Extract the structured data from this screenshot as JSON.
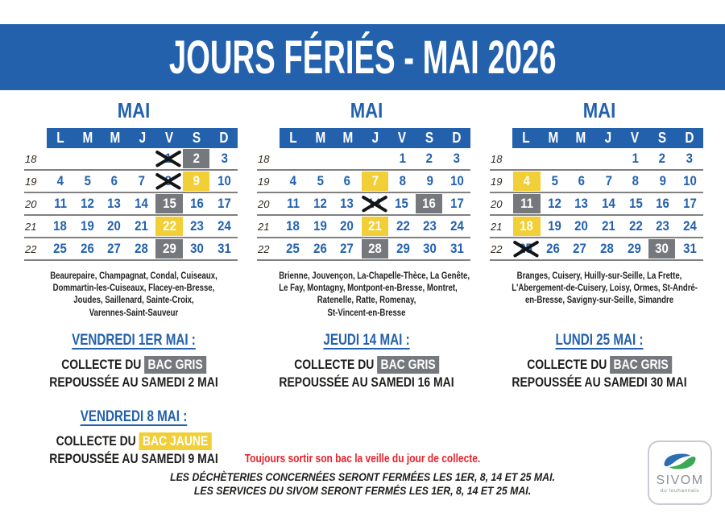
{
  "title": "JOURS FÉRIÉS - MAI 2026",
  "colors": {
    "blue": "#2361ad",
    "yellow": "#f2cf36",
    "gray": "#75797d",
    "red": "#e5242b",
    "ink": "#1d1d1b",
    "line": "#808080"
  },
  "calendars": [
    {
      "month": "MAI",
      "day_headers": [
        "L",
        "M",
        "M",
        "J",
        "V",
        "S",
        "D"
      ],
      "weeks": [
        {
          "week": "18",
          "cells": [
            {
              "d": "",
              "s": ""
            },
            {
              "d": "",
              "s": ""
            },
            {
              "d": "",
              "s": ""
            },
            {
              "d": "",
              "s": ""
            },
            {
              "d": "1",
              "s": "crossed"
            },
            {
              "d": "2",
              "s": "gray"
            },
            {
              "d": "3",
              "s": ""
            }
          ]
        },
        {
          "week": "19",
          "cells": [
            {
              "d": "4",
              "s": ""
            },
            {
              "d": "5",
              "s": ""
            },
            {
              "d": "6",
              "s": ""
            },
            {
              "d": "7",
              "s": ""
            },
            {
              "d": "8",
              "s": "crossed"
            },
            {
              "d": "9",
              "s": "yellow"
            },
            {
              "d": "10",
              "s": ""
            }
          ]
        },
        {
          "week": "20",
          "cells": [
            {
              "d": "11",
              "s": ""
            },
            {
              "d": "12",
              "s": ""
            },
            {
              "d": "13",
              "s": ""
            },
            {
              "d": "14",
              "s": ""
            },
            {
              "d": "15",
              "s": "gray"
            },
            {
              "d": "16",
              "s": ""
            },
            {
              "d": "17",
              "s": ""
            }
          ]
        },
        {
          "week": "21",
          "cells": [
            {
              "d": "18",
              "s": ""
            },
            {
              "d": "19",
              "s": ""
            },
            {
              "d": "20",
              "s": ""
            },
            {
              "d": "21",
              "s": ""
            },
            {
              "d": "22",
              "s": "yellow"
            },
            {
              "d": "23",
              "s": ""
            },
            {
              "d": "24",
              "s": ""
            }
          ]
        },
        {
          "week": "22",
          "cells": [
            {
              "d": "25",
              "s": ""
            },
            {
              "d": "26",
              "s": ""
            },
            {
              "d": "27",
              "s": ""
            },
            {
              "d": "28",
              "s": ""
            },
            {
              "d": "29",
              "s": "gray"
            },
            {
              "d": "30",
              "s": ""
            },
            {
              "d": "31",
              "s": ""
            }
          ]
        }
      ],
      "communes": "Beaurepaire, Champagnat, Condal, Cuiseaux,\nDommartin-les-Cuiseaux, Flacey-en-Bresse,\nJoudes, Saillenard, Sainte-Croix,\nVarennes-Saint-Sauveur",
      "notices": [
        {
          "heading": "VENDREDI 1ER MAI :",
          "prefix": "COLLECTE DU",
          "bin": "BAC GRIS",
          "bin_style": "gray",
          "line2": "REPOUSSÉE AU SAMEDI 2 MAI"
        },
        {
          "heading": "VENDREDI 8 MAI :",
          "prefix": "COLLECTE DU",
          "bin": "BAC JAUNE",
          "bin_style": "yellow",
          "line2": "REPOUSSÉE AU SAMEDI 9 MAI"
        }
      ]
    },
    {
      "month": "MAI",
      "day_headers": [
        "L",
        "M",
        "M",
        "J",
        "V",
        "S",
        "D"
      ],
      "weeks": [
        {
          "week": "18",
          "cells": [
            {
              "d": "",
              "s": ""
            },
            {
              "d": "",
              "s": ""
            },
            {
              "d": "",
              "s": ""
            },
            {
              "d": "",
              "s": ""
            },
            {
              "d": "1",
              "s": ""
            },
            {
              "d": "2",
              "s": ""
            },
            {
              "d": "3",
              "s": ""
            }
          ]
        },
        {
          "week": "19",
          "cells": [
            {
              "d": "4",
              "s": ""
            },
            {
              "d": "5",
              "s": ""
            },
            {
              "d": "6",
              "s": ""
            },
            {
              "d": "7",
              "s": "yellow"
            },
            {
              "d": "8",
              "s": ""
            },
            {
              "d": "9",
              "s": ""
            },
            {
              "d": "10",
              "s": ""
            }
          ]
        },
        {
          "week": "20",
          "cells": [
            {
              "d": "11",
              "s": ""
            },
            {
              "d": "12",
              "s": ""
            },
            {
              "d": "13",
              "s": ""
            },
            {
              "d": "14",
              "s": "crossed"
            },
            {
              "d": "15",
              "s": ""
            },
            {
              "d": "16",
              "s": "gray"
            },
            {
              "d": "17",
              "s": ""
            }
          ]
        },
        {
          "week": "21",
          "cells": [
            {
              "d": "18",
              "s": ""
            },
            {
              "d": "19",
              "s": ""
            },
            {
              "d": "20",
              "s": ""
            },
            {
              "d": "21",
              "s": "yellow"
            },
            {
              "d": "22",
              "s": ""
            },
            {
              "d": "23",
              "s": ""
            },
            {
              "d": "24",
              "s": ""
            }
          ]
        },
        {
          "week": "22",
          "cells": [
            {
              "d": "25",
              "s": ""
            },
            {
              "d": "26",
              "s": ""
            },
            {
              "d": "27",
              "s": ""
            },
            {
              "d": "28",
              "s": "gray"
            },
            {
              "d": "29",
              "s": ""
            },
            {
              "d": "30",
              "s": ""
            },
            {
              "d": "31",
              "s": ""
            }
          ]
        }
      ],
      "communes": "Brienne, Jouvençon, La-Chapelle-Thèce, La Genête,\nLe Fay, Montagny, Montpont-en-Bresse, Montret,\nRatenelle, Ratte, Romenay,\nSt-Vincent-en-Bresse",
      "notices": [
        {
          "heading": "JEUDI 14 MAI :",
          "prefix": "COLLECTE DU",
          "bin": "BAC GRIS",
          "bin_style": "gray",
          "line2": "REPOUSSÉE AU SAMEDI 16 MAI"
        }
      ]
    },
    {
      "month": "MAI",
      "day_headers": [
        "L",
        "M",
        "M",
        "J",
        "V",
        "S",
        "D"
      ],
      "weeks": [
        {
          "week": "18",
          "cells": [
            {
              "d": "",
              "s": ""
            },
            {
              "d": "",
              "s": ""
            },
            {
              "d": "",
              "s": ""
            },
            {
              "d": "",
              "s": ""
            },
            {
              "d": "1",
              "s": ""
            },
            {
              "d": "2",
              "s": ""
            },
            {
              "d": "3",
              "s": ""
            }
          ]
        },
        {
          "week": "19",
          "cells": [
            {
              "d": "4",
              "s": "yellow"
            },
            {
              "d": "5",
              "s": ""
            },
            {
              "d": "6",
              "s": ""
            },
            {
              "d": "7",
              "s": ""
            },
            {
              "d": "8",
              "s": ""
            },
            {
              "d": "9",
              "s": ""
            },
            {
              "d": "10",
              "s": ""
            }
          ]
        },
        {
          "week": "20",
          "cells": [
            {
              "d": "11",
              "s": "gray"
            },
            {
              "d": "12",
              "s": ""
            },
            {
              "d": "13",
              "s": ""
            },
            {
              "d": "14",
              "s": ""
            },
            {
              "d": "15",
              "s": ""
            },
            {
              "d": "16",
              "s": ""
            },
            {
              "d": "17",
              "s": ""
            }
          ]
        },
        {
          "week": "21",
          "cells": [
            {
              "d": "18",
              "s": "yellow"
            },
            {
              "d": "19",
              "s": ""
            },
            {
              "d": "20",
              "s": ""
            },
            {
              "d": "21",
              "s": ""
            },
            {
              "d": "22",
              "s": ""
            },
            {
              "d": "23",
              "s": ""
            },
            {
              "d": "24",
              "s": ""
            }
          ]
        },
        {
          "week": "22",
          "cells": [
            {
              "d": "25",
              "s": "crossed"
            },
            {
              "d": "26",
              "s": ""
            },
            {
              "d": "27",
              "s": ""
            },
            {
              "d": "28",
              "s": ""
            },
            {
              "d": "29",
              "s": ""
            },
            {
              "d": "30",
              "s": "gray"
            },
            {
              "d": "31",
              "s": ""
            }
          ]
        }
      ],
      "communes": "Branges, Cuisery, Huilly-sur-Seille, La Frette,\nL'Abergement-de-Cuisery, Loisy, Ormes, St-André-\nen-Bresse, Savigny-sur-Seille, Simandre",
      "notices": [
        {
          "heading": "LUNDI 25 MAI :",
          "prefix": "COLLECTE DU",
          "bin": "BAC GRIS",
          "bin_style": "gray",
          "line2": "REPOUSSÉE AU SAMEDI 30 MAI"
        }
      ]
    }
  ],
  "footer": {
    "red_note": "Toujours sortir son bac la veille du jour de collecte.",
    "closure_note_1": "LES DÉCHÈTERIES CONCERNÉES SERONT FERMÉES LES 1ER, 8, 14 ET 25 MAI.",
    "closure_note_2": "LES SERVICES DU SIVOM SERONT FERMÉS LES 1ER, 8, 14 ET 25 MAI."
  },
  "logo": {
    "name": "SIVOM",
    "subtitle": "du louhannais"
  }
}
